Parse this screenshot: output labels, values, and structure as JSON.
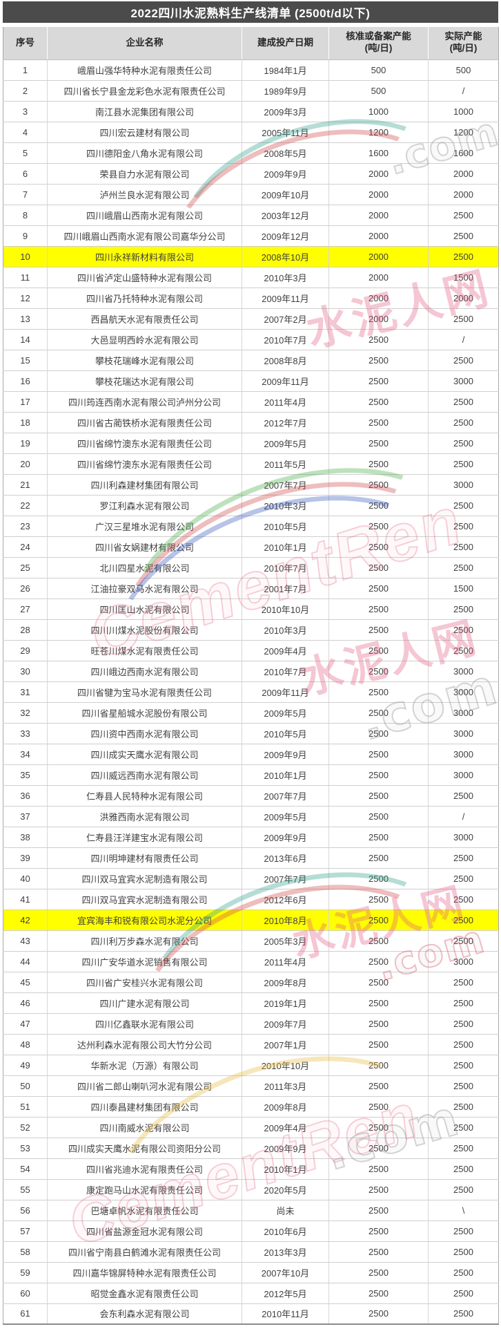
{
  "title": "2022四川水泥熟料生产线清单 (2500t/d以下)",
  "colors": {
    "title_bg": "#4b4b4b",
    "header_bg": "#d9d9d9",
    "highlight_row_bg": "#ffff00",
    "body_text": "#404040",
    "watermark_pink": "#e2587e"
  },
  "watermark": {
    "site_name": "水泥人网",
    "domain": ".com",
    "logo_text": "CementRen"
  },
  "table": {
    "columns": [
      {
        "key": "no",
        "label": "序号"
      },
      {
        "key": "company",
        "label": "企业名称"
      },
      {
        "key": "date",
        "label": "建成投产日期"
      },
      {
        "key": "approved",
        "label": "核准或备案产能\n(吨/日)"
      },
      {
        "key": "actual",
        "label": "实际产能\n(吨/日)"
      }
    ],
    "rows": [
      {
        "no": "1",
        "company": "峨眉山强华特种水泥有限责任公司",
        "date": "1984年1月",
        "approved": "500",
        "actual": "500",
        "highlight": false
      },
      {
        "no": "2",
        "company": "四川省长宁县金龙彩色水泥有限责任公司",
        "date": "1989年9月",
        "approved": "500",
        "actual": "/",
        "highlight": false
      },
      {
        "no": "3",
        "company": "南江县水泥集团有限公司",
        "date": "2009年3月",
        "approved": "1000",
        "actual": "1000",
        "highlight": false
      },
      {
        "no": "4",
        "company": "四川宏云建材有限公司",
        "date": "2005年11月",
        "approved": "1200",
        "actual": "1200",
        "highlight": false
      },
      {
        "no": "5",
        "company": "四川德阳金八角水泥有限公司",
        "date": "2008年5月",
        "approved": "1600",
        "actual": "1600",
        "highlight": false
      },
      {
        "no": "6",
        "company": "荣县自力水泥有限公司",
        "date": "2009年9月",
        "approved": "2000",
        "actual": "2000",
        "highlight": false
      },
      {
        "no": "7",
        "company": "泸州兰良水泥有限公司",
        "date": "2009年10月",
        "approved": "2000",
        "actual": "2000",
        "highlight": false
      },
      {
        "no": "8",
        "company": "四川峨眉山西南水泥有限公司",
        "date": "2003年12月",
        "approved": "2000",
        "actual": "2500",
        "highlight": false
      },
      {
        "no": "9",
        "company": "四川峨眉山西南水泥有限公司嘉华分公司",
        "date": "2009年12月",
        "approved": "2000",
        "actual": "2500",
        "highlight": false
      },
      {
        "no": "10",
        "company": "四川永祥新材料有限公司",
        "date": "2008年10月",
        "approved": "2000",
        "actual": "2500",
        "highlight": true
      },
      {
        "no": "11",
        "company": "四川省泸定山盛特种水泥有限公司",
        "date": "2010年3月",
        "approved": "2000",
        "actual": "1500",
        "highlight": false
      },
      {
        "no": "12",
        "company": "四川省乃托特种水泥有限公司",
        "date": "2009年11月",
        "approved": "2000",
        "actual": "2000",
        "highlight": false
      },
      {
        "no": "13",
        "company": "西昌航天水泥有限责任公司",
        "date": "2007年2月",
        "approved": "2000",
        "actual": "2500",
        "highlight": false
      },
      {
        "no": "14",
        "company": "大邑显明西岭水泥有限公司",
        "date": "2010年7月",
        "approved": "2500",
        "actual": "/",
        "highlight": false
      },
      {
        "no": "15",
        "company": "攀枝花瑞峰水泥有限公司",
        "date": "2008年8月",
        "approved": "2500",
        "actual": "2500",
        "highlight": false
      },
      {
        "no": "16",
        "company": "攀枝花瑞达水泥有限公司",
        "date": "2009年11月",
        "approved": "2500",
        "actual": "3000",
        "highlight": false
      },
      {
        "no": "17",
        "company": "四川筠连西南水泥有限公司泸州分公司",
        "date": "2011年4月",
        "approved": "2500",
        "actual": "2500",
        "highlight": false
      },
      {
        "no": "18",
        "company": "四川省古蔺铁桥水泥有限责任公司",
        "date": "2012年7月",
        "approved": "2500",
        "actual": "2500",
        "highlight": false
      },
      {
        "no": "19",
        "company": "四川省绵竹澳东水泥有限责任公司",
        "date": "2009年5月",
        "approved": "2500",
        "actual": "2500",
        "highlight": false
      },
      {
        "no": "20",
        "company": "四川省绵竹澳东水泥有限责任公司",
        "date": "2011年5月",
        "approved": "2500",
        "actual": "2500",
        "highlight": false
      },
      {
        "no": "21",
        "company": "四川利森建材集团有限公司",
        "date": "2007年7月",
        "approved": "2500",
        "actual": "3000",
        "highlight": false
      },
      {
        "no": "22",
        "company": "罗江利森水泥有限公司",
        "date": "2010年3月",
        "approved": "2500",
        "actual": "2500",
        "highlight": false
      },
      {
        "no": "23",
        "company": "广汉三星堆水泥有限公司",
        "date": "2010年5月",
        "approved": "2500",
        "actual": "2500",
        "highlight": false
      },
      {
        "no": "24",
        "company": "四川省女娲建材有限公司",
        "date": "2010年1月",
        "approved": "2500",
        "actual": "2500",
        "highlight": false
      },
      {
        "no": "25",
        "company": "北川四星水泥有限公司",
        "date": "2010年7月",
        "approved": "2500",
        "actual": "2500",
        "highlight": false
      },
      {
        "no": "26",
        "company": "江油拉豪双马水泥有限公司",
        "date": "2001年7月",
        "approved": "2500",
        "actual": "1500",
        "highlight": false
      },
      {
        "no": "27",
        "company": "四川匡山水泥有限公司",
        "date": "2010年10月",
        "approved": "2500",
        "actual": "2500",
        "highlight": false
      },
      {
        "no": "28",
        "company": "四川川煤水泥股份有限公司",
        "date": "2010年3月",
        "approved": "2500",
        "actual": "2500",
        "highlight": false
      },
      {
        "no": "29",
        "company": "旺苍川煤水泥有限责任公司",
        "date": "2009年4月",
        "approved": "2500",
        "actual": "2500",
        "highlight": false
      },
      {
        "no": "30",
        "company": "四川峨边西南水泥有限公司",
        "date": "2010年7月",
        "approved": "2500",
        "actual": "3000",
        "highlight": false
      },
      {
        "no": "31",
        "company": "四川省犍为宝马水泥有限责任公司",
        "date": "2009年11月",
        "approved": "2500",
        "actual": "3000",
        "highlight": false
      },
      {
        "no": "32",
        "company": "四川省星船城水泥股份有限公司",
        "date": "2009年5月",
        "approved": "2500",
        "actual": "3000",
        "highlight": false
      },
      {
        "no": "33",
        "company": "四川资中西南水泥有限公司",
        "date": "2010年5月",
        "approved": "2500",
        "actual": "3000",
        "highlight": false
      },
      {
        "no": "34",
        "company": "四川成实天鹰水泥有限公司",
        "date": "2009年9月",
        "approved": "2500",
        "actual": "3000",
        "highlight": false
      },
      {
        "no": "35",
        "company": "四川威远西南水泥有限公司",
        "date": "2010年1月",
        "approved": "2500",
        "actual": "3000",
        "highlight": false
      },
      {
        "no": "36",
        "company": "仁寿县人民特种水泥有限公司",
        "date": "2007年7月",
        "approved": "2500",
        "actual": "2500",
        "highlight": false
      },
      {
        "no": "37",
        "company": "洪雅西南水泥有限公司",
        "date": "2009年5月",
        "approved": "2500",
        "actual": "/",
        "highlight": false
      },
      {
        "no": "38",
        "company": "仁寿县汪洋建宝水泥有限公司",
        "date": "2009年9月",
        "approved": "2500",
        "actual": "3000",
        "highlight": false
      },
      {
        "no": "39",
        "company": "四川明坤建材有限责任公司",
        "date": "2013年6月",
        "approved": "2500",
        "actual": "2500",
        "highlight": false
      },
      {
        "no": "40",
        "company": "四川双马宜宾水泥制造有限公司",
        "date": "2007年7月",
        "approved": "2500",
        "actual": "2500",
        "highlight": false
      },
      {
        "no": "41",
        "company": "四川双马宜宾水泥制造有限公司",
        "date": "2012年6月",
        "approved": "2500",
        "actual": "2500",
        "highlight": false
      },
      {
        "no": "42",
        "company": "宜宾海丰和锐有限公司水泥分公司",
        "date": "2010年8月",
        "approved": "2500",
        "actual": "2500",
        "highlight": true
      },
      {
        "no": "43",
        "company": "四川利万步森水泥有限公司",
        "date": "2005年3月",
        "approved": "2500",
        "actual": "2500",
        "highlight": false
      },
      {
        "no": "44",
        "company": "四川广安华道水泥销售有限公司",
        "date": "2011年4月",
        "approved": "2500",
        "actual": "3000",
        "highlight": false
      },
      {
        "no": "45",
        "company": "四川省广安桂兴水泥有限公司",
        "date": "2009年8月",
        "approved": "2500",
        "actual": "2500",
        "highlight": false
      },
      {
        "no": "46",
        "company": "四川广建水泥有限公司",
        "date": "2019年1月",
        "approved": "2500",
        "actual": "2500",
        "highlight": false
      },
      {
        "no": "47",
        "company": "四川亿鑫联水泥有限公司",
        "date": "2009年7月",
        "approved": "2500",
        "actual": "2500",
        "highlight": false
      },
      {
        "no": "48",
        "company": "达州利森水泥有限公司大竹分公司",
        "date": "2007年1月",
        "approved": "2500",
        "actual": "2500",
        "highlight": false
      },
      {
        "no": "49",
        "company": "华新水泥（万源）有限公司",
        "date": "2010年10月",
        "approved": "2500",
        "actual": "2500",
        "highlight": false
      },
      {
        "no": "50",
        "company": "四川省二郎山喇叭河水泥有限公司",
        "date": "2011年3月",
        "approved": "2500",
        "actual": "2500",
        "highlight": false
      },
      {
        "no": "51",
        "company": "四川泰昌建材集团有限公司",
        "date": "2009年8月",
        "approved": "2500",
        "actual": "2500",
        "highlight": false
      },
      {
        "no": "52",
        "company": "四川南威水泥有限公司",
        "date": "2009年4月",
        "approved": "2500",
        "actual": "2500",
        "highlight": false
      },
      {
        "no": "53",
        "company": "四川成实天鹰水泥有限公司资阳分公司",
        "date": "2009年9月",
        "approved": "2500",
        "actual": "2500",
        "highlight": false
      },
      {
        "no": "54",
        "company": "四川省兆迪水泥有限责任公司",
        "date": "2010年1月",
        "approved": "2500",
        "actual": "2500",
        "highlight": false
      },
      {
        "no": "55",
        "company": "康定跑马山水泥有限责任公司",
        "date": "2020年5月",
        "approved": "2500",
        "actual": "2500",
        "highlight": false
      },
      {
        "no": "56",
        "company": "巴塘卓帆水泥有限责任公司",
        "date": "尚未",
        "approved": "2500",
        "actual": "\\",
        "highlight": false
      },
      {
        "no": "57",
        "company": "四川省盐源金冠水泥有限公司",
        "date": "2010年6月",
        "approved": "2500",
        "actual": "2500",
        "highlight": false
      },
      {
        "no": "58",
        "company": "四川省宁南县白鹤滩水泥有限责任公司",
        "date": "2013年3月",
        "approved": "2500",
        "actual": "2500",
        "highlight": false
      },
      {
        "no": "59",
        "company": "四川嘉华锦屏特种水泥有限责任公司",
        "date": "2007年10月",
        "approved": "2500",
        "actual": "2500",
        "highlight": false
      },
      {
        "no": "60",
        "company": "昭觉金鑫水泥有限责任公司",
        "date": "2012年5月",
        "approved": "2500",
        "actual": "2500",
        "highlight": false
      },
      {
        "no": "61",
        "company": "会东利森水泥有限公司",
        "date": "2010年11月",
        "approved": "2500",
        "actual": "2500",
        "highlight": false
      }
    ]
  }
}
